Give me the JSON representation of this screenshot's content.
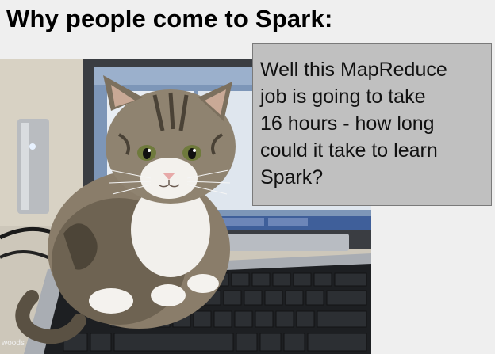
{
  "slide": {
    "title": "Why people come to Spark:",
    "callout_lines": [
      "Well this MapReduce",
      "job is going to take",
      "16 hours - how long",
      "could it take to learn",
      "Spark?"
    ],
    "photo_watermark": "woods"
  },
  "colors": {
    "background": "#efefef",
    "callout_fill": "#c0c0c0",
    "callout_border": "#7a7a7a"
  },
  "icons": [
    "kitten-photo",
    "laptop-keyboard"
  ]
}
